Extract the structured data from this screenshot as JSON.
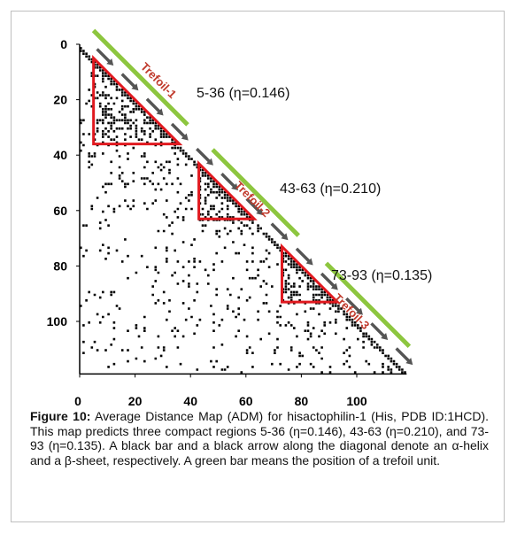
{
  "figure": {
    "caption_label": "Figure 10:",
    "caption_text": " Average Distance Map (ADM) for hisactophilin-1 (His, PDB ID:1HCD). This map predicts three compact regions 5-36 (η=0.146), 43-63 (η=0.210), and 73-93 (η=0.135). A black bar and a black arrow along the diagonal denote an α-helix and a β-sheet, respectively. A green bar means the position of a trefoil unit."
  },
  "chart_data": {
    "type": "heatmap",
    "title": "",
    "xlabel": "",
    "ylabel": "",
    "xlim": [
      0,
      118
    ],
    "ylim": [
      0,
      118
    ],
    "y_inverted": true,
    "x_ticks": [
      "0",
      "20",
      "40",
      "60",
      "80",
      "100"
    ],
    "y_ticks": [
      "0",
      "20",
      "40",
      "60",
      "80",
      "100"
    ],
    "compact_regions": [
      {
        "label": "5-36 (η=0.146)",
        "start": 5,
        "end": 36,
        "eta": 0.146
      },
      {
        "label": "43-63 (η=0.210)",
        "start": 43,
        "end": 63,
        "eta": 0.21
      },
      {
        "label": "73-93 (η=0.135)",
        "start": 73,
        "end": 93,
        "eta": 0.135
      }
    ],
    "trefoil_units": [
      {
        "label": "Trefoil-1",
        "start": 0,
        "end": 34
      },
      {
        "label": "Trefoil-2",
        "start": 43,
        "end": 74
      },
      {
        "label": "Trefoil-3",
        "start": 84,
        "end": 114
      }
    ],
    "colors": {
      "contact": "#000000",
      "region_outline": "#e0191f",
      "trefoil": "#8dc63f",
      "arrow": "#555555",
      "trefoil_label": "#c0392b"
    }
  }
}
